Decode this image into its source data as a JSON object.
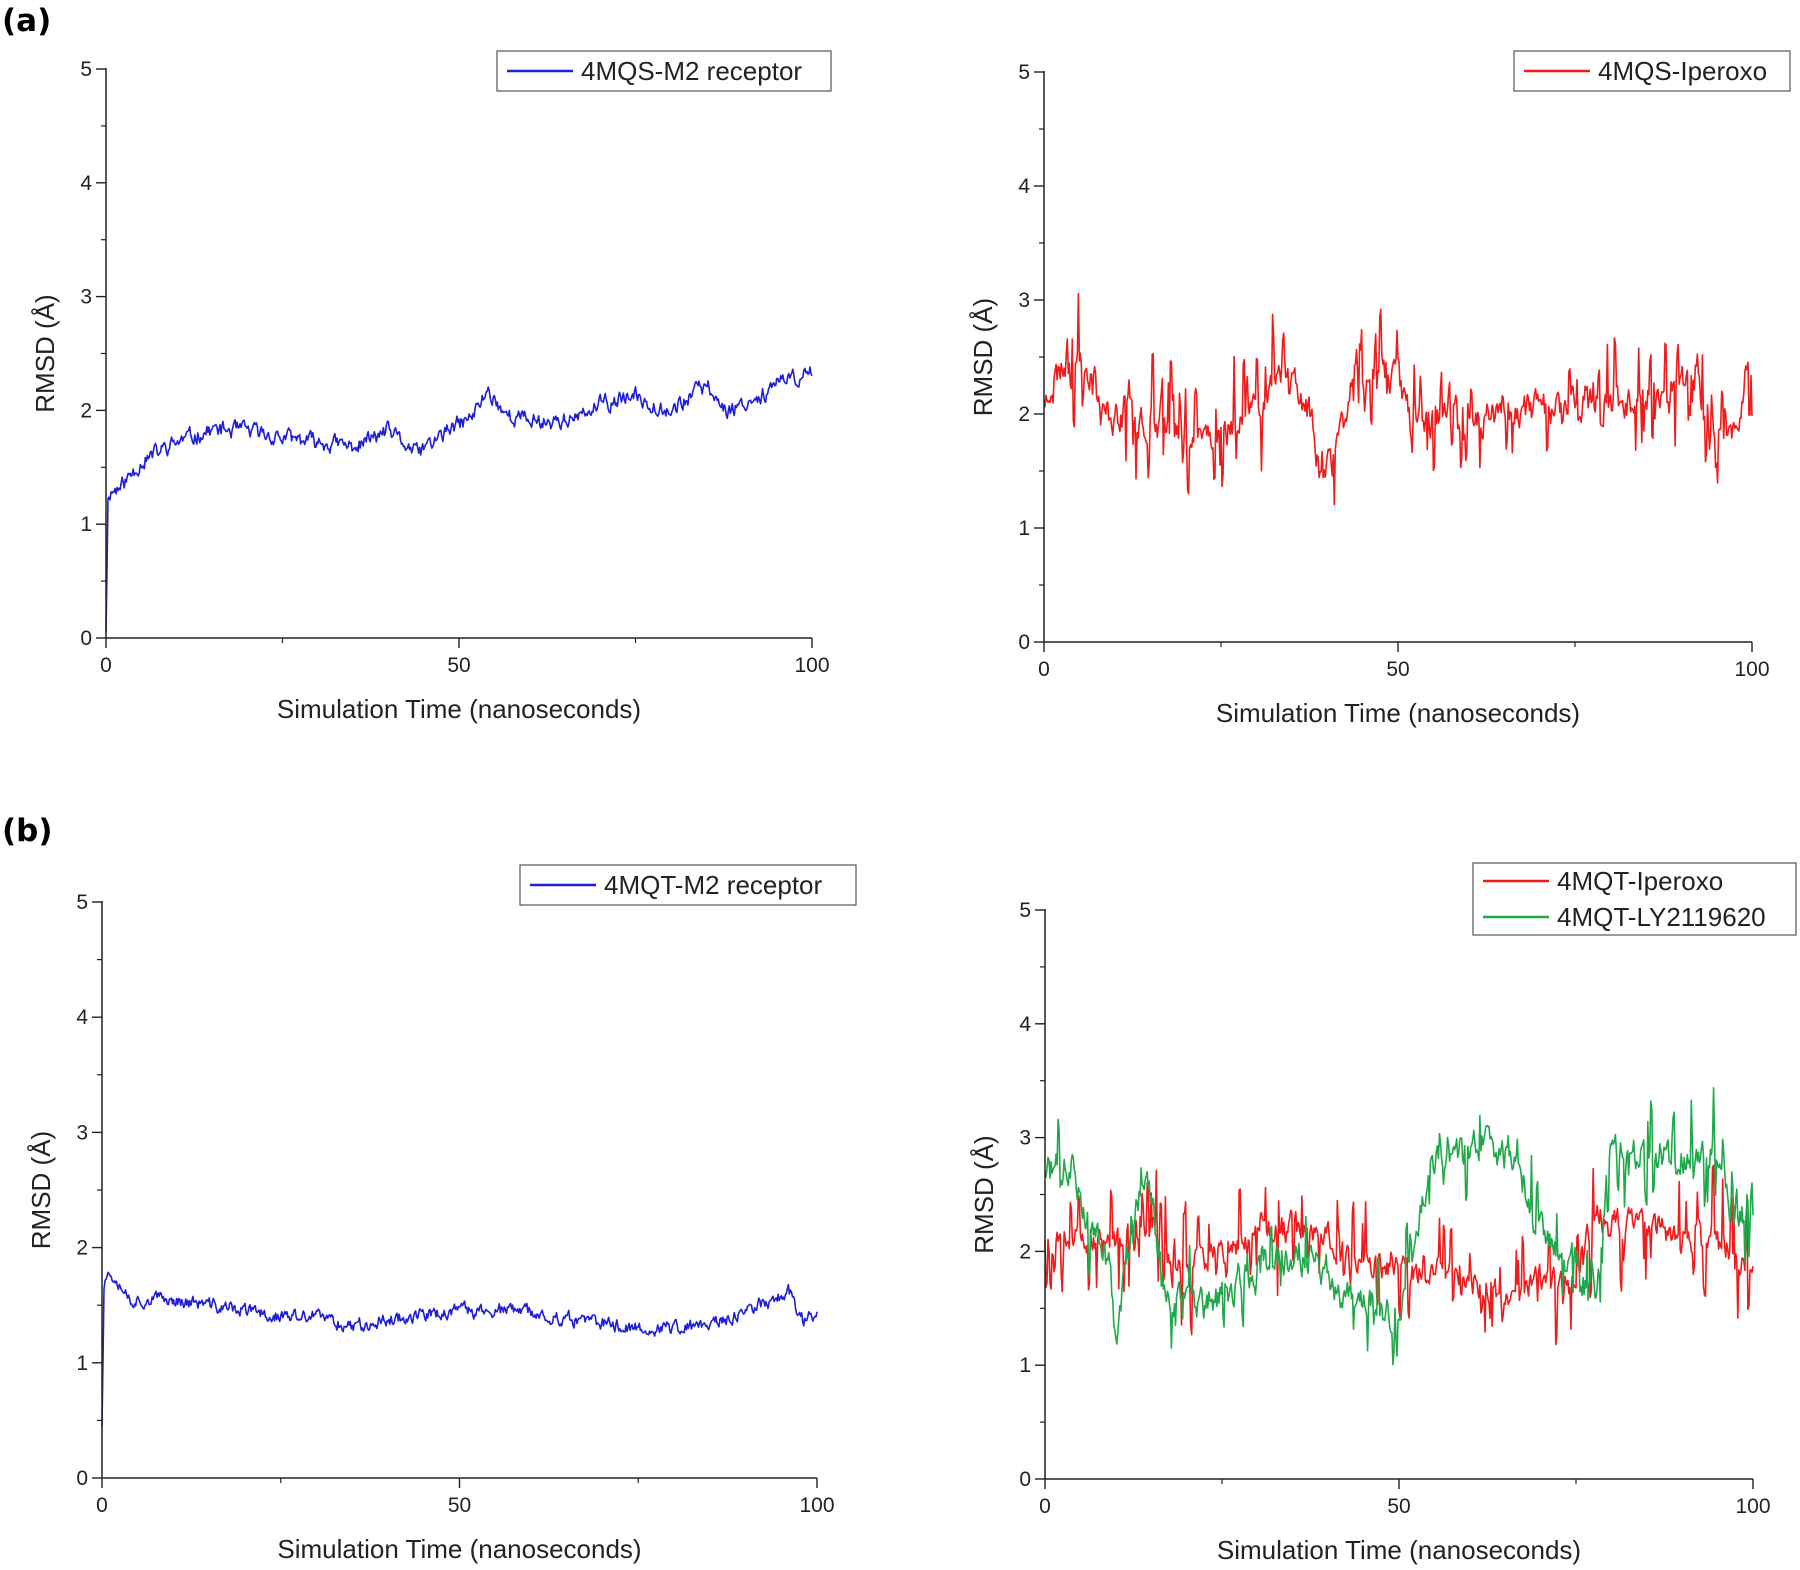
{
  "figure": {
    "panel_a_label": "(a)",
    "panel_b_label": "(b)"
  },
  "chart_data": [
    {
      "type": "line",
      "title": "",
      "xlabel": "Simulation Time (nanoseconds)",
      "ylabel": "RMSD (Å)",
      "xlim": [
        0,
        100
      ],
      "ylim": [
        0,
        5
      ],
      "xticks": [
        0,
        50,
        100
      ],
      "yticks": [
        0,
        1,
        2,
        3,
        4,
        5
      ],
      "legend_position": "top-right",
      "series": [
        {
          "name": "4MQS-M2 receptor",
          "color": "#1f1fd6",
          "gen": {
            "seed": 11,
            "noise": 0.06,
            "spikes": 0.0,
            "spikeAmp": 0,
            "hold": 1
          },
          "baseline": [
            [
              0,
              0.05
            ],
            [
              0.3,
              1.28
            ],
            [
              2,
              1.32
            ],
            [
              5,
              1.55
            ],
            [
              10,
              1.72
            ],
            [
              15,
              1.83
            ],
            [
              20,
              1.82
            ],
            [
              25,
              1.76
            ],
            [
              30,
              1.72
            ],
            [
              35,
              1.68
            ],
            [
              40,
              1.82
            ],
            [
              44,
              1.62
            ],
            [
              48,
              1.8
            ],
            [
              52,
              1.95
            ],
            [
              54,
              2.18
            ],
            [
              57,
              1.95
            ],
            [
              62,
              1.9
            ],
            [
              67,
              1.93
            ],
            [
              70,
              2.05
            ],
            [
              75,
              2.12
            ],
            [
              80,
              2.0
            ],
            [
              85,
              2.22
            ],
            [
              88,
              2.0
            ],
            [
              91,
              2.08
            ],
            [
              95,
              2.22
            ],
            [
              100,
              2.35
            ]
          ]
        }
      ]
    },
    {
      "type": "line",
      "title": "",
      "xlabel": "Simulation Time (nanoseconds)",
      "ylabel": "RMSD (Å)",
      "xlim": [
        0,
        100
      ],
      "ylim": [
        0,
        5
      ],
      "xticks": [
        0,
        50,
        100
      ],
      "yticks": [
        0,
        1,
        2,
        3,
        4,
        5
      ],
      "legend_position": "top-right",
      "series": [
        {
          "name": "4MQS-Iperoxo",
          "color": "#ee1c1c",
          "gen": {
            "seed": 23,
            "noise": 0.12,
            "spikes": 0.22,
            "spikeAmp": 0.5,
            "hold": 2
          },
          "baseline": [
            [
              0,
              2.05
            ],
            [
              1,
              2.3
            ],
            [
              3,
              2.42
            ],
            [
              7,
              2.4
            ],
            [
              8,
              2.0
            ],
            [
              15,
              1.95
            ],
            [
              20,
              1.82
            ],
            [
              25,
              1.85
            ],
            [
              30,
              2.0
            ],
            [
              33,
              2.45
            ],
            [
              36,
              2.2
            ],
            [
              38,
              1.9
            ],
            [
              39,
              1.45
            ],
            [
              41,
              1.6
            ],
            [
              44,
              2.4
            ],
            [
              50,
              2.35
            ],
            [
              52,
              1.9
            ],
            [
              60,
              2.0
            ],
            [
              70,
              2.05
            ],
            [
              78,
              2.1
            ],
            [
              86,
              2.15
            ],
            [
              92,
              2.3
            ],
            [
              95,
              1.8
            ],
            [
              98,
              1.75
            ],
            [
              99,
              2.35
            ],
            [
              100,
              2.35
            ]
          ]
        }
      ]
    },
    {
      "type": "line",
      "title": "",
      "xlabel": "Simulation Time (nanoseconds)",
      "ylabel": "RMSD (Å)",
      "xlim": [
        0,
        100
      ],
      "ylim": [
        0,
        5
      ],
      "xticks": [
        0,
        50,
        100
      ],
      "yticks": [
        0,
        1,
        2,
        3,
        4,
        5
      ],
      "legend_position": "top-right",
      "series": [
        {
          "name": "4MQT-M2 receptor",
          "color": "#1f1fd6",
          "gen": {
            "seed": 37,
            "noise": 0.05,
            "spikes": 0.0,
            "spikeAmp": 0,
            "hold": 1
          },
          "baseline": [
            [
              0,
              0.45
            ],
            [
              0.3,
              1.78
            ],
            [
              2,
              1.75
            ],
            [
              4,
              1.55
            ],
            [
              10,
              1.55
            ],
            [
              20,
              1.45
            ],
            [
              25,
              1.4
            ],
            [
              30,
              1.4
            ],
            [
              35,
              1.32
            ],
            [
              40,
              1.38
            ],
            [
              50,
              1.45
            ],
            [
              58,
              1.45
            ],
            [
              65,
              1.38
            ],
            [
              75,
              1.3
            ],
            [
              82,
              1.3
            ],
            [
              88,
              1.38
            ],
            [
              92,
              1.5
            ],
            [
              96,
              1.62
            ],
            [
              98,
              1.38
            ],
            [
              100,
              1.42
            ]
          ]
        }
      ]
    },
    {
      "type": "line",
      "title": "",
      "xlabel": "Simulation Time (nanoseconds)",
      "ylabel": "RMSD (Å)",
      "xlim": [
        0,
        100
      ],
      "ylim": [
        0,
        5
      ],
      "xticks": [
        0,
        50,
        100
      ],
      "yticks": [
        0,
        1,
        2,
        3,
        4,
        5
      ],
      "legend_position": "top-right",
      "series": [
        {
          "name": "4MQT-Iperoxo",
          "color": "#ee1c1c",
          "gen": {
            "seed": 53,
            "noise": 0.1,
            "spikes": 0.2,
            "spikeAmp": 0.55,
            "hold": 2
          },
          "baseline": [
            [
              0,
              2.1
            ],
            [
              5,
              2.12
            ],
            [
              10,
              2.05
            ],
            [
              15,
              2.25
            ],
            [
              18,
              1.8
            ],
            [
              22,
              1.95
            ],
            [
              28,
              2.05
            ],
            [
              32,
              2.25
            ],
            [
              38,
              2.2
            ],
            [
              42,
              2.0
            ],
            [
              50,
              1.85
            ],
            [
              55,
              1.8
            ],
            [
              60,
              1.75
            ],
            [
              65,
              1.6
            ],
            [
              70,
              1.75
            ],
            [
              74,
              1.7
            ],
            [
              78,
              2.3
            ],
            [
              85,
              2.2
            ],
            [
              90,
              2.1
            ],
            [
              95,
              2.1
            ],
            [
              100,
              1.8
            ]
          ]
        },
        {
          "name": "4MQT-LY2119620",
          "color": "#21a84a",
          "gen": {
            "seed": 71,
            "noise": 0.12,
            "spikes": 0.14,
            "spikeAmp": 0.45,
            "hold": 2
          },
          "baseline": [
            [
              0,
              2.7
            ],
            [
              4,
              2.75
            ],
            [
              6,
              2.3
            ],
            [
              9,
              1.9
            ],
            [
              10,
              1.2
            ],
            [
              12,
              2.1
            ],
            [
              14,
              2.7
            ],
            [
              15,
              2.5
            ],
            [
              17,
              1.6
            ],
            [
              22,
              1.55
            ],
            [
              26,
              1.6
            ],
            [
              28,
              1.8
            ],
            [
              33,
              1.9
            ],
            [
              38,
              2.0
            ],
            [
              42,
              1.6
            ],
            [
              47,
              1.5
            ],
            [
              50,
              1.4
            ],
            [
              52,
              2.05
            ],
            [
              55,
              2.8
            ],
            [
              62,
              2.95
            ],
            [
              66,
              2.8
            ],
            [
              68,
              2.4
            ],
            [
              72,
              2.0
            ],
            [
              75,
              1.9
            ],
            [
              77,
              1.6
            ],
            [
              78,
              1.7
            ],
            [
              80,
              2.9
            ],
            [
              86,
              2.8
            ],
            [
              92,
              2.85
            ],
            [
              95,
              2.95
            ],
            [
              97,
              2.3
            ],
            [
              100,
              2.35
            ]
          ]
        }
      ]
    }
  ]
}
